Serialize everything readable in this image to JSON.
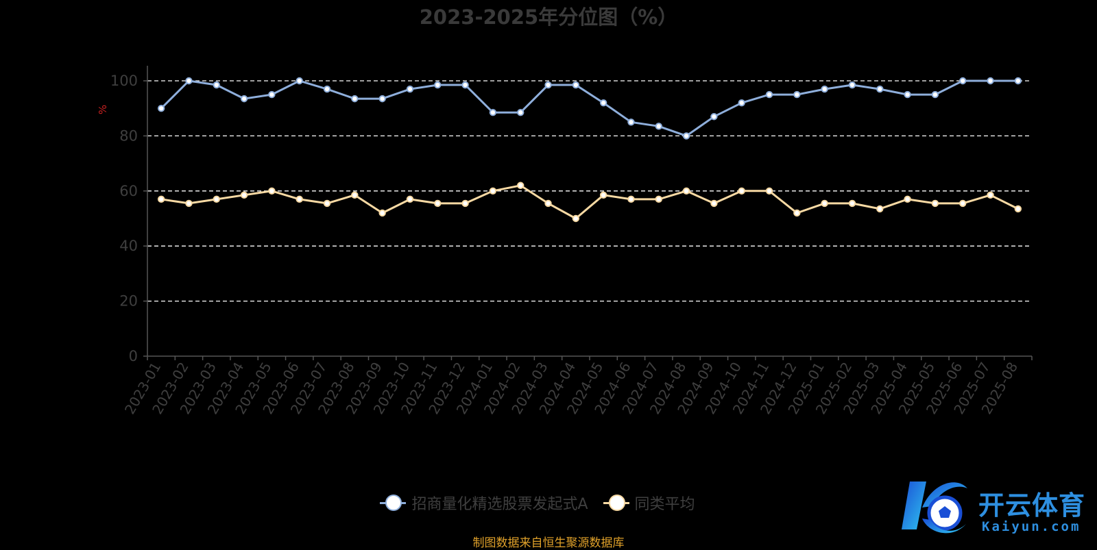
{
  "chart_data": {
    "type": "line",
    "title": "2023-2025年分位图（%）",
    "ylabel": "%",
    "xlabel": "",
    "ylim": [
      0,
      100
    ],
    "yticks": [
      0,
      20,
      40,
      60,
      80,
      100
    ],
    "grid": "dashed horizontal",
    "legend_position": "bottom-center",
    "categories": [
      "2023-01",
      "2023-02",
      "2023-03",
      "2023-04",
      "2023-05",
      "2023-06",
      "2023-07",
      "2023-08",
      "2023-09",
      "2023-10",
      "2023-11",
      "2023-12",
      "2024-01",
      "2024-02",
      "2024-03",
      "2024-04",
      "2024-05",
      "2024-06",
      "2024-07",
      "2024-08",
      "2024-09",
      "2024-10",
      "2024-11",
      "2024-12",
      "2025-01",
      "2025-02",
      "2025-03",
      "2025-04",
      "2025-05",
      "2025-06",
      "2025-07",
      "2025-08"
    ],
    "series": [
      {
        "name": "招商量化精选股票发起式A",
        "color": "#8eaedb",
        "values": [
          90,
          100,
          98.5,
          93.5,
          95,
          100,
          97,
          93.5,
          93.5,
          97,
          98.5,
          98.5,
          88.5,
          88.5,
          98.5,
          98.5,
          92,
          85,
          83.5,
          80,
          87,
          92,
          95,
          95,
          97,
          98.5,
          97,
          95,
          95,
          100,
          100,
          100
        ]
      },
      {
        "name": "同类平均",
        "color": "#f7d9a3",
        "values": [
          57,
          55.5,
          57,
          58.5,
          60,
          57,
          55.5,
          58.5,
          52,
          57,
          55.5,
          55.5,
          60,
          62,
          55.5,
          50,
          58.5,
          57,
          57,
          60,
          55.5,
          60,
          60,
          52,
          55.5,
          55.5,
          53.5,
          57,
          55.5,
          55.5,
          58.5,
          53.5
        ]
      }
    ]
  },
  "colors": {
    "background": "#000000",
    "axis": "#555555",
    "grid": "#ffffff",
    "tick_text": "#3f3f3f",
    "ylabel_color": "#cc2222",
    "source_color": "#e0a12a"
  },
  "source_note": "制图数据来自恒生聚源数据库",
  "watermark": {
    "name": "开云体育",
    "url": "Kaiyun.com",
    "icon": "soccer-ball-k-logo"
  }
}
